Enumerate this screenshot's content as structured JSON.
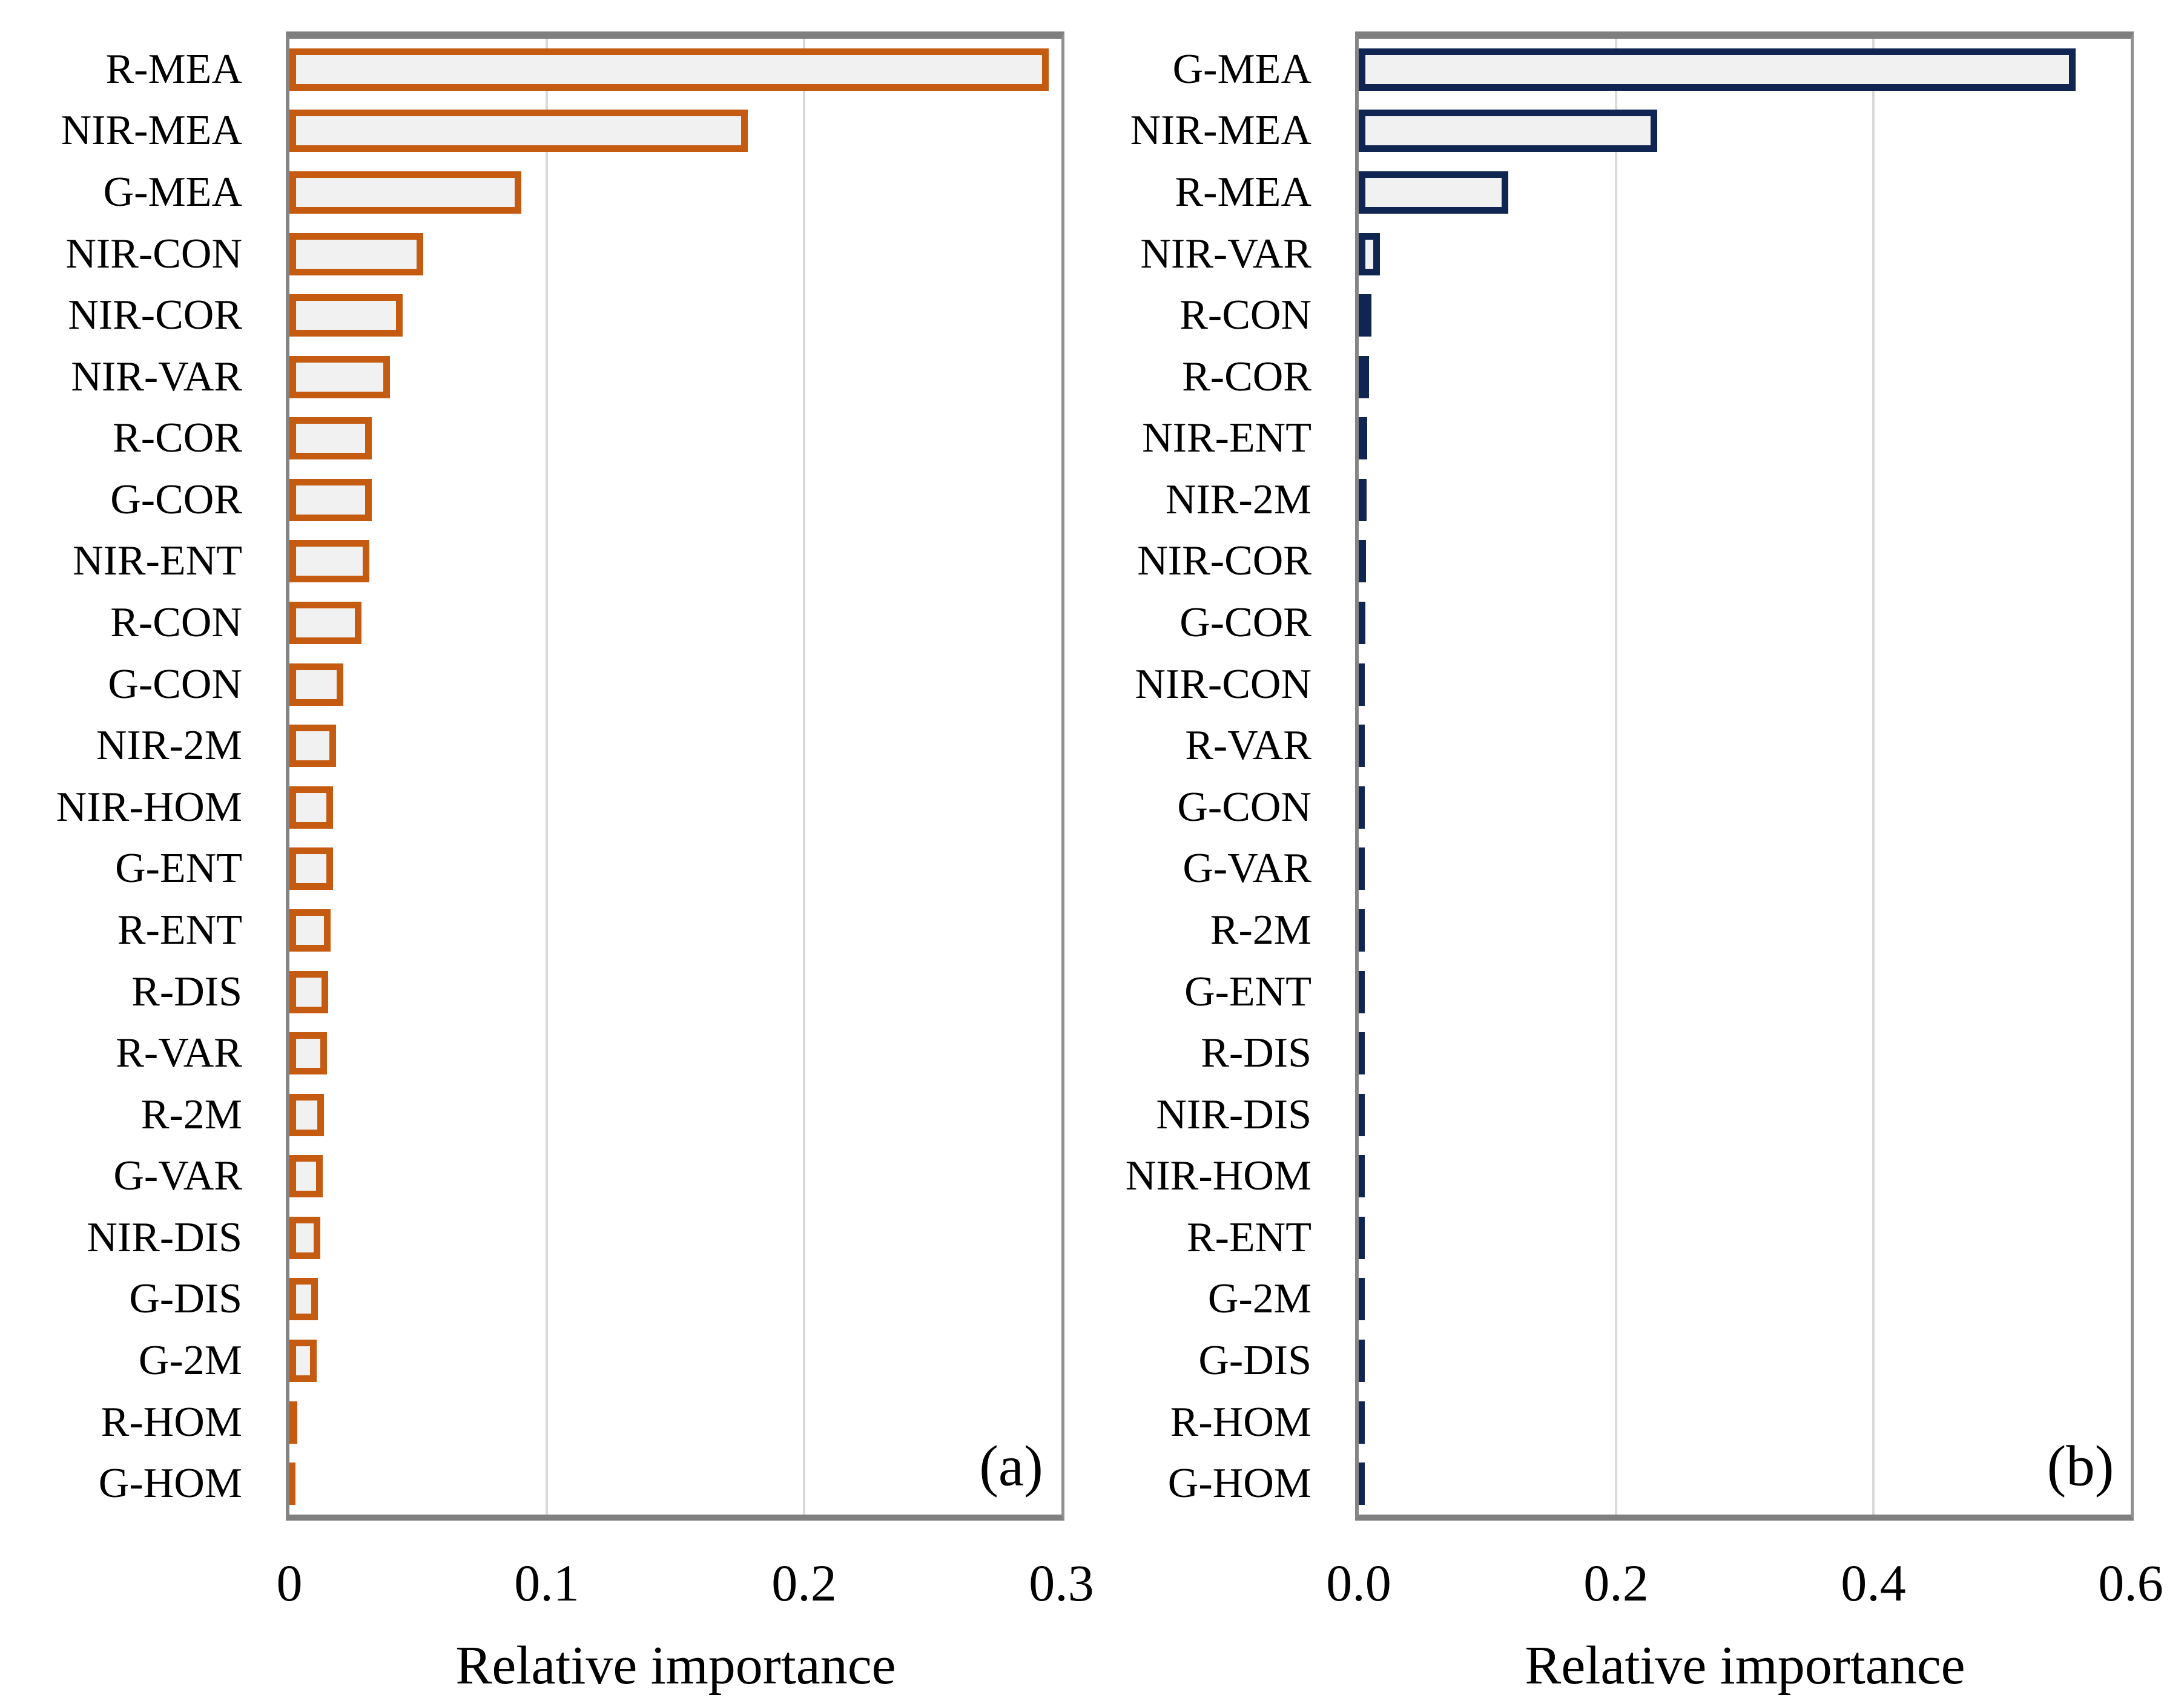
{
  "style": {
    "frame_top_color": "#7f7f7f",
    "frame_color": "#808080",
    "grid_color": "#d9d9d9",
    "background": "#ffffff",
    "text_color": "#000000"
  },
  "chart_data": [
    {
      "type": "bar",
      "orientation": "horizontal",
      "panel_label": "(a)",
      "title": "",
      "xlabel": "Relative importance",
      "ylabel": "",
      "xlim": [
        0,
        0.3
      ],
      "x_ticks": [
        "0",
        "0.1",
        "0.2",
        "0.3"
      ],
      "x_tick_values": [
        0,
        0.1,
        0.2,
        0.3
      ],
      "grid": true,
      "legend": "none",
      "bar_border_color": "#C55A11",
      "bar_fill_color": "#F1F1F1",
      "categories": [
        "R-MEA",
        "NIR-MEA",
        "G-MEA",
        "NIR-CON",
        "NIR-COR",
        "NIR-VAR",
        "R-COR",
        "G-COR",
        "NIR-ENT",
        "R-CON",
        "G-CON",
        "NIR-2M",
        "NIR-HOM",
        "G-ENT",
        "R-ENT",
        "R-DIS",
        "R-VAR",
        "R-2M",
        "G-VAR",
        "NIR-DIS",
        "G-DIS",
        "G-2M",
        "R-HOM",
        "G-HOM"
      ],
      "values": [
        0.295,
        0.178,
        0.09,
        0.052,
        0.044,
        0.039,
        0.032,
        0.032,
        0.031,
        0.028,
        0.021,
        0.018,
        0.017,
        0.017,
        0.016,
        0.015,
        0.0145,
        0.0135,
        0.013,
        0.012,
        0.011,
        0.0105,
        0.003,
        0.002
      ]
    },
    {
      "type": "bar",
      "orientation": "horizontal",
      "panel_label": "(b)",
      "title": "",
      "xlabel": "Relative importance",
      "ylabel": "",
      "xlim": [
        0,
        0.6
      ],
      "x_ticks": [
        "0.0",
        "0.2",
        "0.4",
        "0.6"
      ],
      "x_tick_values": [
        0,
        0.2,
        0.4,
        0.6
      ],
      "grid": true,
      "legend": "none",
      "bar_border_color": "#112552",
      "bar_fill_color": "#F1F1F1",
      "categories": [
        "G-MEA",
        "NIR-MEA",
        "R-MEA",
        "NIR-VAR",
        "R-CON",
        "R-COR",
        "NIR-ENT",
        "NIR-2M",
        "NIR-COR",
        "G-COR",
        "NIR-CON",
        "R-VAR",
        "G-CON",
        "G-VAR",
        "R-2M",
        "G-ENT",
        "R-DIS",
        "NIR-DIS",
        "NIR-HOM",
        "R-ENT",
        "G-2M",
        "G-DIS",
        "R-HOM",
        "G-HOM"
      ],
      "values": [
        0.557,
        0.232,
        0.116,
        0.0165,
        0.01,
        0.008,
        0.0066,
        0.0061,
        0.0056,
        0.0052,
        0.0046,
        0.0038,
        0.0033,
        0.0028,
        0.0027,
        0.0025,
        0.0023,
        0.0022,
        0.0021,
        0.002,
        0.0019,
        0.0016,
        0.0014,
        0.001
      ]
    }
  ]
}
